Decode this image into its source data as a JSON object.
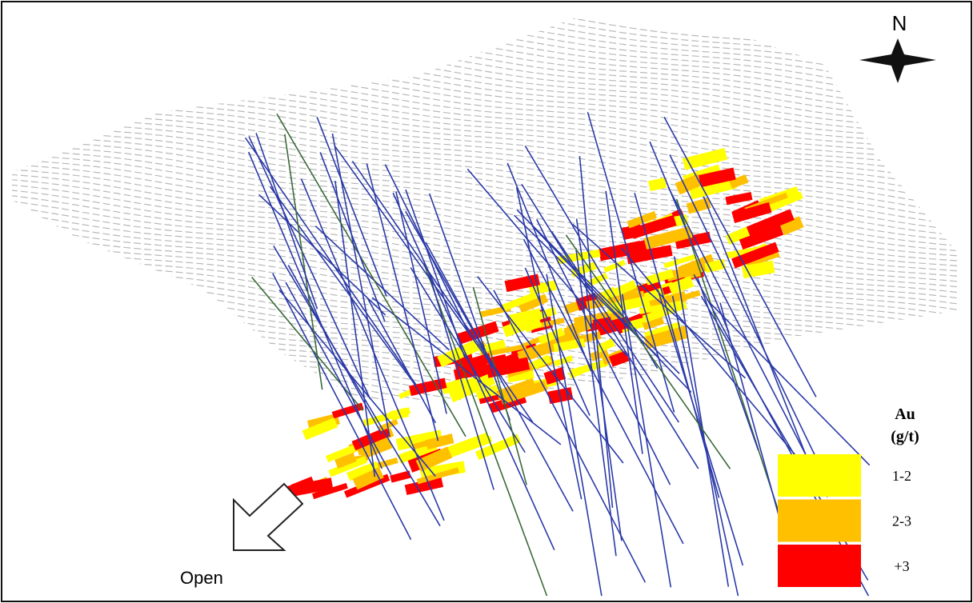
{
  "compass": {
    "label": "N"
  },
  "legend": {
    "title": [
      "Au",
      "(g/t)"
    ],
    "items": [
      {
        "label": "1-2",
        "color": "#ffff00"
      },
      {
        "label": "2-3",
        "color": "#ffc000"
      },
      {
        "label": "+3",
        "color": "#ff0000"
      }
    ]
  },
  "annotation": "Open"
}
